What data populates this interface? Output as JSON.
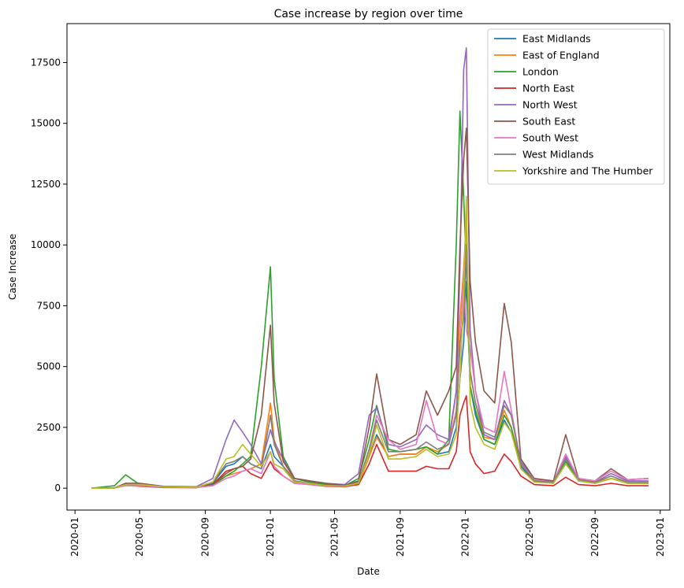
{
  "chart_data": {
    "type": "line",
    "title": "Case increase by region over time",
    "xlabel": "Date",
    "ylabel": "Case Increase",
    "x_ticks": [
      "2020-01",
      "2020-05",
      "2020-09",
      "2021-01",
      "2021-05",
      "2021-09",
      "2022-01",
      "2022-05",
      "2022-09",
      "2023-01"
    ],
    "y_ticks": [
      0,
      2500,
      5000,
      7500,
      10000,
      12500,
      15000,
      17500
    ],
    "xlim": [
      "2019-12-17",
      "2023-01-19"
    ],
    "ylim": [
      -900,
      19100
    ],
    "grid": false,
    "legend_position": "top-right",
    "x": [
      "2020-02-01",
      "2020-03-15",
      "2020-04-05",
      "2020-05-01",
      "2020-06-15",
      "2020-08-15",
      "2020-09-15",
      "2020-10-10",
      "2020-10-25",
      "2020-11-10",
      "2020-11-25",
      "2020-12-15",
      "2021-01-01",
      "2021-01-08",
      "2021-01-25",
      "2021-02-15",
      "2021-03-15",
      "2021-04-15",
      "2021-05-20",
      "2021-06-15",
      "2021-07-05",
      "2021-07-19",
      "2021-08-10",
      "2021-09-01",
      "2021-10-01",
      "2021-10-20",
      "2021-11-10",
      "2021-12-01",
      "2021-12-15",
      "2021-12-22",
      "2021-12-29",
      "2022-01-03",
      "2022-01-10",
      "2022-01-20",
      "2022-02-05",
      "2022-02-25",
      "2022-03-15",
      "2022-03-28",
      "2022-04-15",
      "2022-05-10",
      "2022-06-15",
      "2022-07-08",
      "2022-08-01",
      "2022-09-01",
      "2022-10-01",
      "2022-11-01",
      "2022-12-10"
    ],
    "series": [
      {
        "name": "East Midlands",
        "color": "#1f77b4",
        "values": [
          0,
          10,
          120,
          120,
          50,
          40,
          200,
          900,
          1000,
          1300,
          1000,
          800,
          1800,
          1300,
          900,
          300,
          200,
          100,
          80,
          200,
          1300,
          2200,
          1300,
          1400,
          1400,
          1700,
          1400,
          1500,
          2500,
          4500,
          6000,
          8500,
          4200,
          3000,
          2000,
          1800,
          2800,
          2300,
          900,
          300,
          200,
          1000,
          300,
          200,
          400,
          200,
          200
        ]
      },
      {
        "name": "East of England",
        "color": "#ff7f0e",
        "values": [
          0,
          10,
          150,
          150,
          50,
          40,
          100,
          500,
          600,
          700,
          800,
          1000,
          3500,
          2000,
          900,
          400,
          300,
          200,
          100,
          150,
          1300,
          2100,
          1300,
          1400,
          1400,
          1700,
          1500,
          1800,
          4000,
          7000,
          9000,
          11000,
          4800,
          3500,
          2100,
          2000,
          3200,
          2500,
          1000,
          300,
          200,
          1200,
          300,
          250,
          400,
          250,
          200
        ]
      },
      {
        "name": "London",
        "color": "#2ca02c",
        "values": [
          0,
          100,
          550,
          150,
          50,
          30,
          150,
          500,
          700,
          1000,
          1300,
          5000,
          9100,
          4500,
          1300,
          400,
          250,
          150,
          100,
          400,
          2000,
          3400,
          1600,
          1500,
          1600,
          1700,
          1400,
          2000,
          10000,
          15500,
          12000,
          9000,
          4200,
          3200,
          2000,
          1800,
          3000,
          2500,
          800,
          300,
          200,
          1100,
          300,
          200,
          400,
          200,
          200
        ]
      },
      {
        "name": "North East",
        "color": "#d62728",
        "values": [
          0,
          5,
          120,
          80,
          30,
          20,
          150,
          700,
          800,
          900,
          600,
          400,
          1100,
          800,
          500,
          200,
          150,
          80,
          60,
          150,
          1000,
          1800,
          700,
          700,
          700,
          900,
          800,
          800,
          1500,
          3000,
          3500,
          3800,
          1500,
          1000,
          600,
          700,
          1400,
          1100,
          500,
          150,
          100,
          450,
          150,
          100,
          200,
          100,
          100
        ]
      },
      {
        "name": "North West",
        "color": "#9467bd",
        "values": [
          0,
          10,
          200,
          200,
          80,
          60,
          400,
          2000,
          2800,
          2300,
          1800,
          1000,
          2400,
          1900,
          1200,
          400,
          300,
          200,
          150,
          600,
          3000,
          3300,
          1800,
          1700,
          2000,
          2600,
          2200,
          2000,
          4000,
          9000,
          17200,
          18100,
          6500,
          4000,
          2200,
          2000,
          3600,
          3000,
          1100,
          400,
          250,
          1300,
          300,
          250,
          600,
          300,
          300
        ]
      },
      {
        "name": "South East",
        "color": "#8c564b",
        "values": [
          0,
          10,
          200,
          200,
          60,
          40,
          150,
          600,
          800,
          900,
          1200,
          3000,
          6700,
          3500,
          1100,
          400,
          300,
          200,
          120,
          300,
          2500,
          4700,
          2000,
          1800,
          2200,
          4000,
          3000,
          4000,
          5000,
          10000,
          13500,
          14800,
          8500,
          6000,
          4000,
          3500,
          7600,
          6000,
          1200,
          400,
          300,
          2200,
          400,
          300,
          800,
          350,
          400
        ]
      },
      {
        "name": "South West",
        "color": "#e377c2",
        "values": [
          0,
          5,
          100,
          100,
          40,
          30,
          100,
          400,
          500,
          700,
          800,
          600,
          1500,
          900,
          500,
          200,
          150,
          100,
          80,
          200,
          1600,
          3000,
          2000,
          1600,
          1800,
          3600,
          2000,
          1800,
          3200,
          5800,
          9000,
          6500,
          5800,
          4000,
          2500,
          2300,
          4800,
          3200,
          1000,
          350,
          250,
          1400,
          400,
          300,
          700,
          350,
          400
        ]
      },
      {
        "name": "West Midlands",
        "color": "#7f7f7f",
        "values": [
          0,
          10,
          150,
          150,
          60,
          40,
          250,
          1000,
          1100,
          1300,
          1000,
          800,
          3000,
          1800,
          900,
          300,
          200,
          120,
          100,
          250,
          1600,
          2800,
          1500,
          1500,
          1600,
          1900,
          1600,
          1800,
          3000,
          6000,
          7000,
          10000,
          4800,
          3500,
          2300,
          2100,
          3400,
          3000,
          1000,
          300,
          250,
          1200,
          350,
          250,
          500,
          250,
          250
        ]
      },
      {
        "name": "Yorkshire and The Humber",
        "color": "#bcbd22",
        "values": [
          0,
          10,
          150,
          150,
          60,
          40,
          250,
          1200,
          1300,
          1800,
          1400,
          900,
          1500,
          1000,
          800,
          250,
          200,
          100,
          80,
          200,
          1400,
          2600,
          1200,
          1200,
          1300,
          1600,
          1300,
          1400,
          2200,
          4500,
          8000,
          12000,
          3500,
          2500,
          1800,
          1600,
          2700,
          2300,
          800,
          250,
          200,
          1000,
          300,
          200,
          400,
          200,
          200
        ]
      }
    ]
  }
}
